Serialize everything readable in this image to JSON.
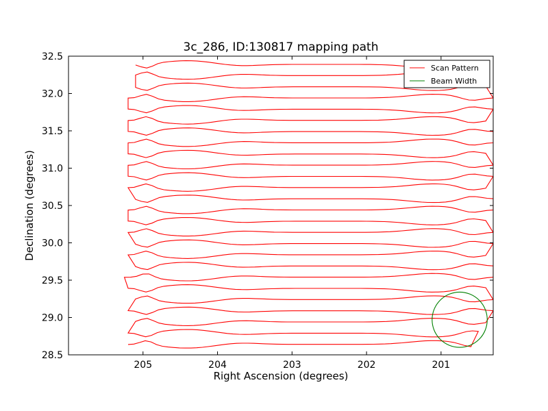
{
  "chart_data": {
    "type": "line",
    "title": "3c_286, ID:130817 mapping path",
    "xlabel": "Right Ascension (degrees)",
    "ylabel": "Declination (degrees)",
    "xlim": [
      206.0,
      200.3
    ],
    "ylim": [
      28.5,
      32.5
    ],
    "x_ticks": [
      205,
      204,
      203,
      202,
      201
    ],
    "x_tick_labels": [
      "205",
      "204",
      "203",
      "202",
      "201"
    ],
    "y_ticks": [
      28.5,
      29.0,
      29.5,
      30.0,
      30.5,
      31.0,
      31.5,
      32.0,
      32.5
    ],
    "y_tick_labels": [
      "28.5",
      "29.0",
      "29.5",
      "30.0",
      "30.5",
      "31.0",
      "31.5",
      "32.0",
      "32.5"
    ],
    "grid": false,
    "legend_position": "top-right",
    "series": [
      {
        "name": "Scan Pattern",
        "color": "#ff0000",
        "scan_rows": [
          {
            "dec": 28.64,
            "ra_start": 205.2,
            "ra_end": 200.6
          },
          {
            "dec": 28.79,
            "ra_start": 205.2,
            "ra_end": 200.5
          },
          {
            "dec": 28.94,
            "ra_start": 205.1,
            "ra_end": 200.4
          },
          {
            "dec": 29.09,
            "ra_start": 205.2,
            "ra_end": 200.3
          },
          {
            "dec": 29.24,
            "ra_start": 205.1,
            "ra_end": 200.3
          },
          {
            "dec": 29.39,
            "ra_start": 205.2,
            "ra_end": 200.4
          },
          {
            "dec": 29.54,
            "ra_start": 205.25,
            "ra_end": 200.3
          },
          {
            "dec": 29.69,
            "ra_start": 205.1,
            "ra_end": 200.3
          },
          {
            "dec": 29.84,
            "ra_start": 205.2,
            "ra_end": 200.4
          },
          {
            "dec": 29.99,
            "ra_start": 205.1,
            "ra_end": 200.3
          },
          {
            "dec": 30.14,
            "ra_start": 205.2,
            "ra_end": 200.3
          },
          {
            "dec": 30.29,
            "ra_start": 205.2,
            "ra_end": 200.4
          },
          {
            "dec": 30.44,
            "ra_start": 205.2,
            "ra_end": 200.3
          },
          {
            "dec": 30.59,
            "ra_start": 205.1,
            "ra_end": 200.3
          },
          {
            "dec": 30.74,
            "ra_start": 205.2,
            "ra_end": 200.4
          },
          {
            "dec": 30.89,
            "ra_start": 205.2,
            "ra_end": 200.3
          },
          {
            "dec": 31.04,
            "ra_start": 205.2,
            "ra_end": 200.3
          },
          {
            "dec": 31.19,
            "ra_start": 205.2,
            "ra_end": 200.4
          },
          {
            "dec": 31.34,
            "ra_start": 205.2,
            "ra_end": 200.3
          },
          {
            "dec": 31.49,
            "ra_start": 205.2,
            "ra_end": 200.3
          },
          {
            "dec": 31.64,
            "ra_start": 205.2,
            "ra_end": 200.4
          },
          {
            "dec": 31.79,
            "ra_start": 205.2,
            "ra_end": 200.3
          },
          {
            "dec": 31.94,
            "ra_start": 205.2,
            "ra_end": 200.3
          },
          {
            "dec": 32.09,
            "ra_start": 205.1,
            "ra_end": 200.4
          },
          {
            "dec": 32.24,
            "ra_start": 205.1,
            "ra_end": 200.4
          },
          {
            "dec": 32.39,
            "ra_start": 205.1,
            "ra_end": 200.6
          }
        ]
      },
      {
        "name": "Beam Width",
        "color": "#008000",
        "circle": {
          "center_ra": 200.75,
          "center_dec": 28.97,
          "radius_deg": 0.37
        }
      }
    ]
  }
}
